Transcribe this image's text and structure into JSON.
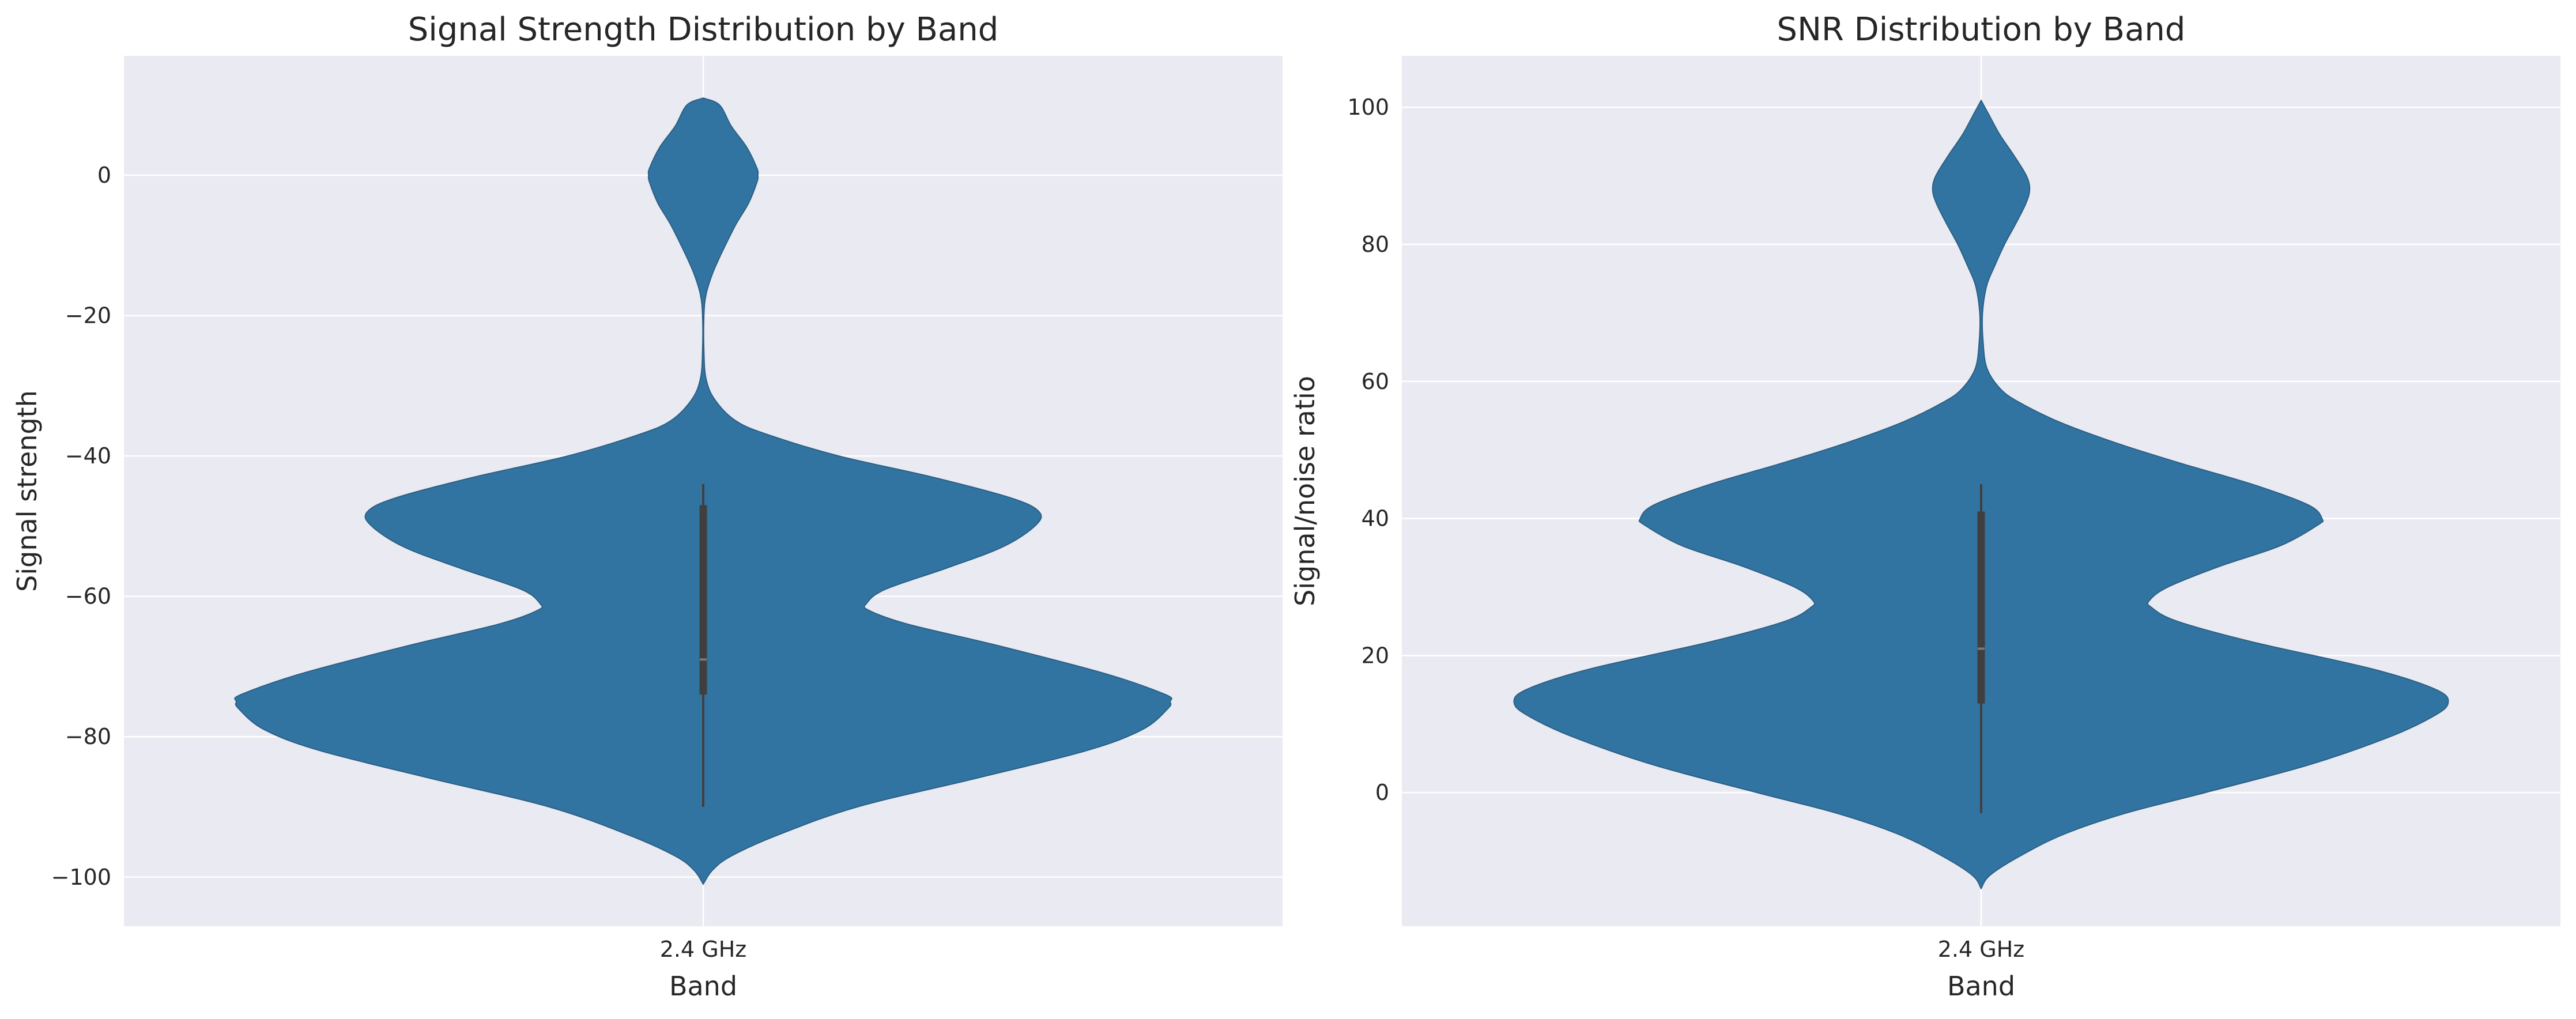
{
  "figure": {
    "background": "#ffffff"
  },
  "chart_data": [
    {
      "type": "violin",
      "title": "Signal Strength Distribution by Band",
      "xlabel": "Band",
      "ylabel": "Signal strength",
      "categories": [
        "2.4 GHz"
      ],
      "ylim": [
        -107,
        17
      ],
      "yticks": [
        0,
        -20,
        -40,
        -60,
        -80,
        -100
      ],
      "grid": true,
      "legend": "none",
      "colors": {
        "violin_fill": "#3274a1",
        "violin_edge": "#2a5f84",
        "box": "#3f3f3f",
        "axes_background": "#eaeaf2",
        "grid": "#ffffff",
        "text": "#262626"
      },
      "series": [
        {
          "category": "2.4 GHz",
          "data_min": -90,
          "q1": -74,
          "median": -69,
          "q3": -47,
          "data_max": -44,
          "kde_extent": [
            -101,
            11
          ],
          "density_profile": [
            {
              "y": -101,
              "w": 0.0
            },
            {
              "y": -99,
              "w": 0.02
            },
            {
              "y": -97,
              "w": 0.06
            },
            {
              "y": -94,
              "w": 0.16
            },
            {
              "y": -90,
              "w": 0.33
            },
            {
              "y": -86,
              "w": 0.58
            },
            {
              "y": -82,
              "w": 0.82
            },
            {
              "y": -79,
              "w": 0.94
            },
            {
              "y": -76,
              "w": 0.995
            },
            {
              "y": -75,
              "w": 1.0
            },
            {
              "y": -74,
              "w": 0.99
            },
            {
              "y": -71,
              "w": 0.86
            },
            {
              "y": -67,
              "w": 0.63
            },
            {
              "y": -64,
              "w": 0.44
            },
            {
              "y": -62,
              "w": 0.355
            },
            {
              "y": -61,
              "w": 0.35
            },
            {
              "y": -59,
              "w": 0.39
            },
            {
              "y": -56,
              "w": 0.52
            },
            {
              "y": -53,
              "w": 0.64
            },
            {
              "y": -50,
              "w": 0.71
            },
            {
              "y": -48,
              "w": 0.72
            },
            {
              "y": -46,
              "w": 0.66
            },
            {
              "y": -43,
              "w": 0.49
            },
            {
              "y": -40,
              "w": 0.29
            },
            {
              "y": -37,
              "w": 0.14
            },
            {
              "y": -35,
              "w": 0.07
            },
            {
              "y": -32,
              "w": 0.025
            },
            {
              "y": -29,
              "w": 0.006
            },
            {
              "y": -25,
              "w": 0.0015
            },
            {
              "y": -20,
              "w": 0.0015
            },
            {
              "y": -17,
              "w": 0.006
            },
            {
              "y": -14,
              "w": 0.02
            },
            {
              "y": -11,
              "w": 0.04
            },
            {
              "y": -7,
              "w": 0.07
            },
            {
              "y": -4,
              "w": 0.097
            },
            {
              "y": -1,
              "w": 0.115
            },
            {
              "y": 0,
              "w": 0.117
            },
            {
              "y": 1,
              "w": 0.115
            },
            {
              "y": 4,
              "w": 0.093
            },
            {
              "y": 7,
              "w": 0.06
            },
            {
              "y": 10,
              "w": 0.035
            },
            {
              "y": 11,
              "w": 0.0
            }
          ]
        }
      ]
    },
    {
      "type": "violin",
      "title": "SNR Distribution by Band",
      "xlabel": "Band",
      "ylabel": "Signal/noise ratio",
      "categories": [
        "2.4 GHz"
      ],
      "ylim": [
        -19.5,
        107.5
      ],
      "yticks": [
        0,
        20,
        40,
        60,
        80,
        100
      ],
      "grid": true,
      "legend": "none",
      "colors": {
        "violin_fill": "#3274a1",
        "violin_edge": "#2a5f84",
        "box": "#3f3f3f",
        "axes_background": "#eaeaf2",
        "grid": "#ffffff",
        "text": "#262626"
      },
      "series": [
        {
          "category": "2.4 GHz",
          "data_min": -3,
          "q1": 13,
          "median": 21,
          "q3": 41,
          "data_max": 45,
          "kde_extent": [
            -14,
            101
          ],
          "density_profile": [
            {
              "y": -14,
              "w": 0.0
            },
            {
              "y": -12,
              "w": 0.02
            },
            {
              "y": -9,
              "w": 0.09
            },
            {
              "y": -6,
              "w": 0.18
            },
            {
              "y": -3,
              "w": 0.31
            },
            {
              "y": 0,
              "w": 0.48
            },
            {
              "y": 4,
              "w": 0.7
            },
            {
              "y": 8,
              "w": 0.87
            },
            {
              "y": 11,
              "w": 0.965
            },
            {
              "y": 13,
              "w": 1.0
            },
            {
              "y": 15,
              "w": 0.975
            },
            {
              "y": 18,
              "w": 0.84
            },
            {
              "y": 22,
              "w": 0.58
            },
            {
              "y": 25,
              "w": 0.42
            },
            {
              "y": 27,
              "w": 0.365
            },
            {
              "y": 28,
              "w": 0.36
            },
            {
              "y": 30,
              "w": 0.4
            },
            {
              "y": 33,
              "w": 0.51
            },
            {
              "y": 36,
              "w": 0.64
            },
            {
              "y": 39,
              "w": 0.72
            },
            {
              "y": 40,
              "w": 0.73
            },
            {
              "y": 42,
              "w": 0.7
            },
            {
              "y": 45,
              "w": 0.58
            },
            {
              "y": 48,
              "w": 0.43
            },
            {
              "y": 51,
              "w": 0.29
            },
            {
              "y": 54,
              "w": 0.17
            },
            {
              "y": 57,
              "w": 0.08
            },
            {
              "y": 59,
              "w": 0.04
            },
            {
              "y": 62,
              "w": 0.012
            },
            {
              "y": 66,
              "w": 0.004
            },
            {
              "y": 70,
              "w": 0.003
            },
            {
              "y": 74,
              "w": 0.012
            },
            {
              "y": 77,
              "w": 0.03
            },
            {
              "y": 80,
              "w": 0.05
            },
            {
              "y": 83,
              "w": 0.074
            },
            {
              "y": 86,
              "w": 0.096
            },
            {
              "y": 88,
              "w": 0.104
            },
            {
              "y": 90,
              "w": 0.097
            },
            {
              "y": 93,
              "w": 0.07
            },
            {
              "y": 96,
              "w": 0.04
            },
            {
              "y": 99,
              "w": 0.016
            },
            {
              "y": 101,
              "w": 0.0
            }
          ]
        }
      ]
    }
  ]
}
